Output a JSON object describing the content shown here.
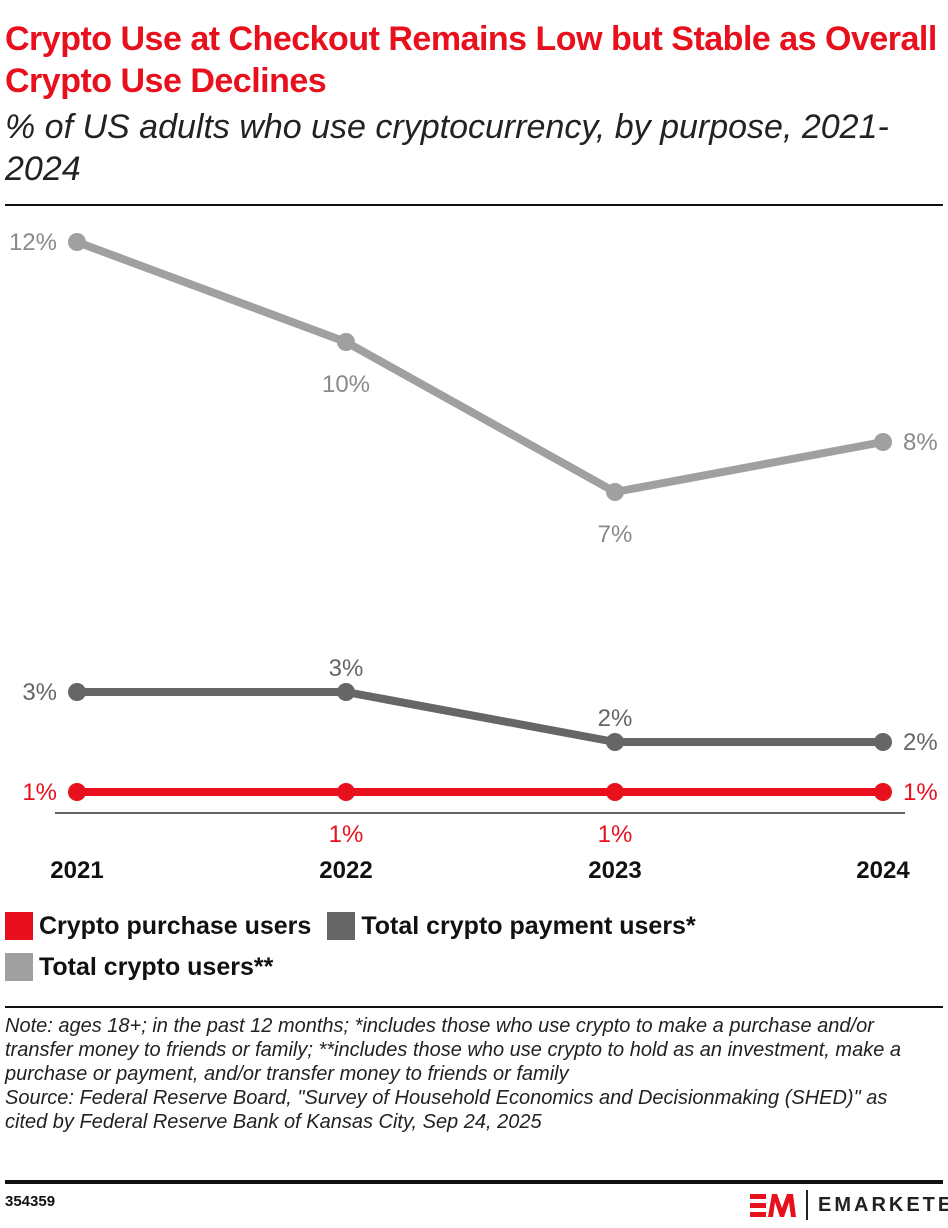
{
  "header": {
    "title": "Crypto Use at Checkout Remains Low but Stable as Overall Crypto Use Declines",
    "subtitle": "% of US adults who use cryptocurrency, by purpose, 2021-2024"
  },
  "chart_data": {
    "type": "line",
    "title": "Crypto Use at Checkout Remains Low but Stable as Overall Crypto Use Declines",
    "subtitle": "% of US adults who use cryptocurrency, by purpose, 2021-2024",
    "categories": [
      "2021",
      "2022",
      "2023",
      "2024"
    ],
    "series": [
      {
        "name": "Total crypto users**",
        "values": [
          12,
          10,
          7,
          8
        ],
        "labels": [
          "12%",
          "10%",
          "7%",
          "8%"
        ],
        "color": "#a0a0a0"
      },
      {
        "name": "Total crypto payment users*",
        "values": [
          3,
          3,
          2,
          2
        ],
        "labels": [
          "3%",
          "3%",
          "2%",
          "2%"
        ],
        "color": "#666666"
      },
      {
        "name": "Crypto purchase users",
        "values": [
          1,
          1,
          1,
          1
        ],
        "labels": [
          "1%",
          "1%",
          "1%",
          "1%"
        ],
        "color": "#e8101c"
      }
    ],
    "legend_order": [
      "Crypto purchase users",
      "Total crypto payment users*",
      "Total crypto users**"
    ],
    "legend_placement": "bottom",
    "grid": false,
    "ylim": [
      0,
      12
    ]
  },
  "footer": {
    "note": "Note: ages 18+; in the past 12 months; *includes those who use crypto to make a purchase and/or transfer money to friends or family; **includes those who use crypto to hold as an investment, make a purchase or payment, and/or transfer money to friends or family",
    "source": "Source: Federal Reserve Board, \"Survey of Household Economics and Decisionmaking (SHED)\" as cited by Federal Reserve Bank of Kansas City, Sep 24, 2025",
    "chart_id": "354359",
    "brand": "EMARKETER"
  }
}
